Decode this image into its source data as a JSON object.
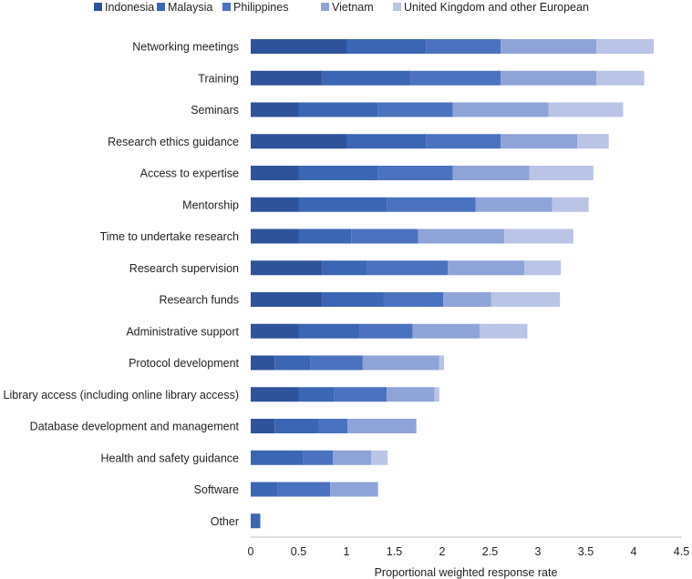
{
  "chart_data": {
    "type": "bar",
    "orientation": "horizontal",
    "stacked": true,
    "title": "",
    "xlabel": "Proportional weighted response rate",
    "ylabel": "",
    "xlim": [
      0,
      4.5
    ],
    "xticks": [
      "0",
      "0.5",
      "1",
      "1.5",
      "2",
      "2.5",
      "3",
      "3.5",
      "4",
      "4.5"
    ],
    "legend_position": "top",
    "grid": false,
    "categories": [
      "Networking meetings",
      "Training",
      "Seminars",
      "Research ethics guidance",
      "Access to expertise",
      "Mentorship",
      "Time to undertake research",
      "Research supervision",
      "Research funds",
      "Administrative support",
      "Protocol development",
      "Library access (including online library access)",
      "Database development and management",
      "Health and safety guidance",
      "Software",
      "Other"
    ],
    "series": [
      {
        "name": "Indonesia",
        "color": "#2e539b",
        "values": [
          1.0,
          0.75,
          0.5,
          1.0,
          0.5,
          0.5,
          0.5,
          0.75,
          0.75,
          0.5,
          0.25,
          0.5,
          0.25,
          0.0,
          0.0,
          0.0
        ]
      },
      {
        "name": "Malaysia",
        "color": "#3a66b4",
        "values": [
          0.83,
          0.92,
          0.83,
          0.83,
          0.83,
          0.92,
          0.55,
          0.46,
          0.64,
          0.64,
          0.37,
          0.37,
          0.46,
          0.55,
          0.28,
          0.1
        ]
      },
      {
        "name": "Philippines",
        "color": "#4a72bf",
        "values": [
          0.78,
          0.94,
          0.78,
          0.78,
          0.78,
          0.93,
          0.7,
          0.85,
          0.62,
          0.55,
          0.55,
          0.55,
          0.3,
          0.31,
          0.55,
          0.0
        ]
      },
      {
        "name": "Vietnam",
        "color": "#8ea3d7",
        "values": [
          1.0,
          1.0,
          1.0,
          0.8,
          0.8,
          0.8,
          0.9,
          0.8,
          0.5,
          0.7,
          0.8,
          0.5,
          0.72,
          0.4,
          0.5,
          0.0
        ]
      },
      {
        "name": "United Kingdom and other European",
        "color": "#b9c4e6",
        "values": [
          0.6,
          0.5,
          0.78,
          0.33,
          0.67,
          0.38,
          0.72,
          0.38,
          0.72,
          0.5,
          0.05,
          0.05,
          0.0,
          0.17,
          0.0,
          0.0
        ]
      }
    ]
  }
}
